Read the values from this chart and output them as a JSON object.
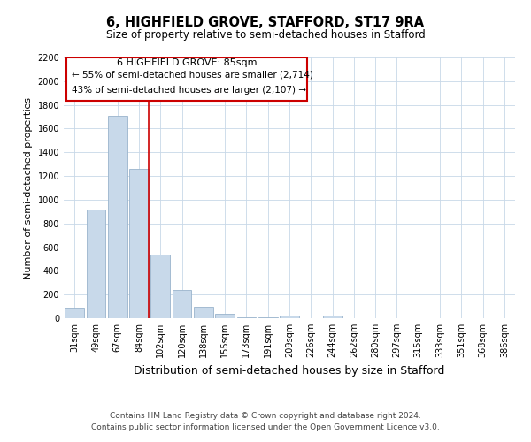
{
  "title": "6, HIGHFIELD GROVE, STAFFORD, ST17 9RA",
  "subtitle": "Size of property relative to semi-detached houses in Stafford",
  "xlabel": "Distribution of semi-detached houses by size in Stafford",
  "ylabel": "Number of semi-detached properties",
  "footer_line1": "Contains HM Land Registry data © Crown copyright and database right 2024.",
  "footer_line2": "Contains public sector information licensed under the Open Government Licence v3.0.",
  "annotation_title": "6 HIGHFIELD GROVE: 85sqm",
  "annotation_line1": "← 55% of semi-detached houses are smaller (2,714)",
  "annotation_line2": "43% of semi-detached houses are larger (2,107) →",
  "bar_color": "#c8d9ea",
  "bar_edge_color": "#9ab4cc",
  "vline_color": "#cc0000",
  "annotation_box_edgecolor": "#cc0000",
  "annotation_box_facecolor": "#ffffff",
  "background_color": "#ffffff",
  "grid_color": "#c8d8e8",
  "categories": [
    "31sqm",
    "49sqm",
    "67sqm",
    "84sqm",
    "102sqm",
    "120sqm",
    "138sqm",
    "155sqm",
    "173sqm",
    "191sqm",
    "209sqm",
    "226sqm",
    "244sqm",
    "262sqm",
    "280sqm",
    "297sqm",
    "315sqm",
    "333sqm",
    "351sqm",
    "368sqm",
    "386sqm"
  ],
  "values": [
    90,
    920,
    1710,
    1260,
    540,
    240,
    100,
    40,
    10,
    5,
    20,
    0,
    20,
    0,
    0,
    0,
    0,
    0,
    0,
    0,
    0
  ],
  "ylim": [
    0,
    2200
  ],
  "yticks": [
    0,
    200,
    400,
    600,
    800,
    1000,
    1200,
    1400,
    1600,
    1800,
    2000,
    2200
  ],
  "vline_bar_index": 3,
  "title_fontsize": 10.5,
  "subtitle_fontsize": 8.5,
  "xlabel_fontsize": 9,
  "ylabel_fontsize": 8,
  "tick_fontsize": 7,
  "annotation_fontsize": 8,
  "footer_fontsize": 6.5,
  "footer_color": "#444444"
}
